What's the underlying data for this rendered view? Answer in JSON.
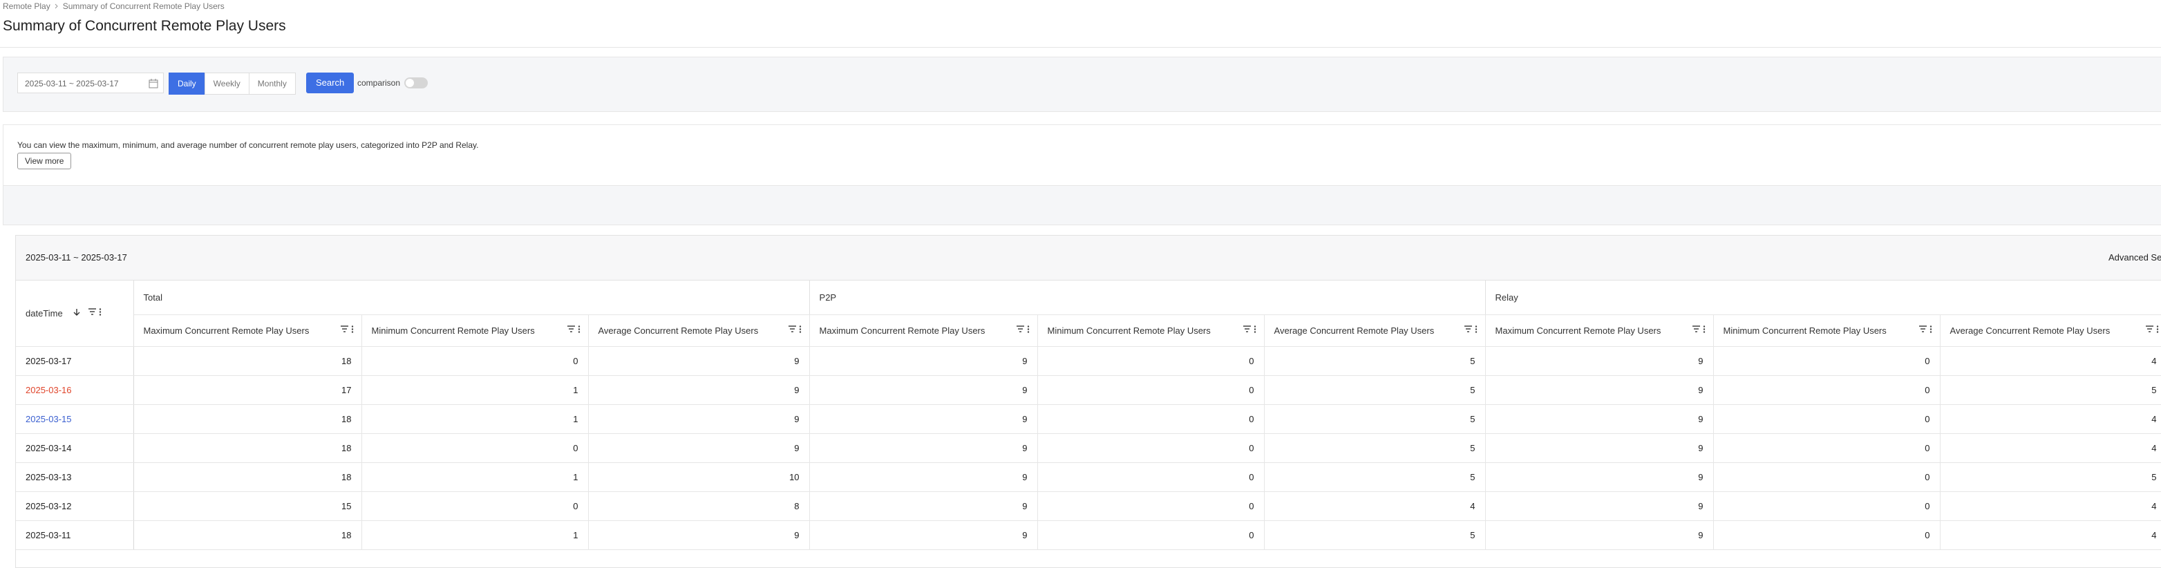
{
  "breadcrumb": [
    "Remote Play",
    "Summary of Concurrent Remote Play Users"
  ],
  "header": {
    "title": "Summary of Concurrent Remote Play Users"
  },
  "filter": {
    "date_range": "2025-03-11 ~ 2025-03-17",
    "periods": [
      "Daily",
      "Weekly",
      "Monthly"
    ],
    "search": "Search",
    "comparison": "comparison"
  },
  "info": {
    "text": "You can view the maximum, minimum, and average number of concurrent remote play users, categorized into P2P and Relay.",
    "button": "View more"
  },
  "table": {
    "range": "2025-03-11 ~ 2025-03-17",
    "advanced": "Advanced Se",
    "date_column": "dateTime",
    "groups": [
      "Total",
      "P2P",
      "Relay"
    ],
    "columns": [
      "Maximum Concurrent Remote Play Users",
      "Minimum Concurrent Remote Play Users",
      "Average Concurrent Remote Play Users",
      "Maximum Concurrent Remote Play Users",
      "Minimum Concurrent Remote Play Users",
      "Average Concurrent Remote Play Users",
      "Maximum Concurrent Remote Play Users",
      "Minimum Concurrent Remote Play Users",
      "Average Concurrent Remote Play Users"
    ],
    "rows": [
      {
        "date": "2025-03-17",
        "values": [
          18,
          0,
          9,
          9,
          0,
          5,
          9,
          0,
          4
        ]
      },
      {
        "date": "2025-03-16",
        "date_color": "#e0452b",
        "values": [
          17,
          1,
          9,
          9,
          0,
          5,
          9,
          0,
          5
        ]
      },
      {
        "date": "2025-03-15",
        "date_color": "#3a5fd0",
        "values": [
          18,
          1,
          9,
          9,
          0,
          5,
          9,
          0,
          4
        ]
      },
      {
        "date": "2025-03-14",
        "values": [
          18,
          0,
          9,
          9,
          0,
          5,
          9,
          0,
          4
        ]
      },
      {
        "date": "2025-03-13",
        "values": [
          18,
          1,
          10,
          9,
          0,
          5,
          9,
          0,
          5
        ]
      },
      {
        "date": "2025-03-12",
        "values": [
          15,
          0,
          8,
          9,
          0,
          4,
          9,
          0,
          4
        ]
      },
      {
        "date": "2025-03-11",
        "values": [
          18,
          1,
          9,
          9,
          0,
          5,
          9,
          0,
          4
        ]
      }
    ]
  }
}
